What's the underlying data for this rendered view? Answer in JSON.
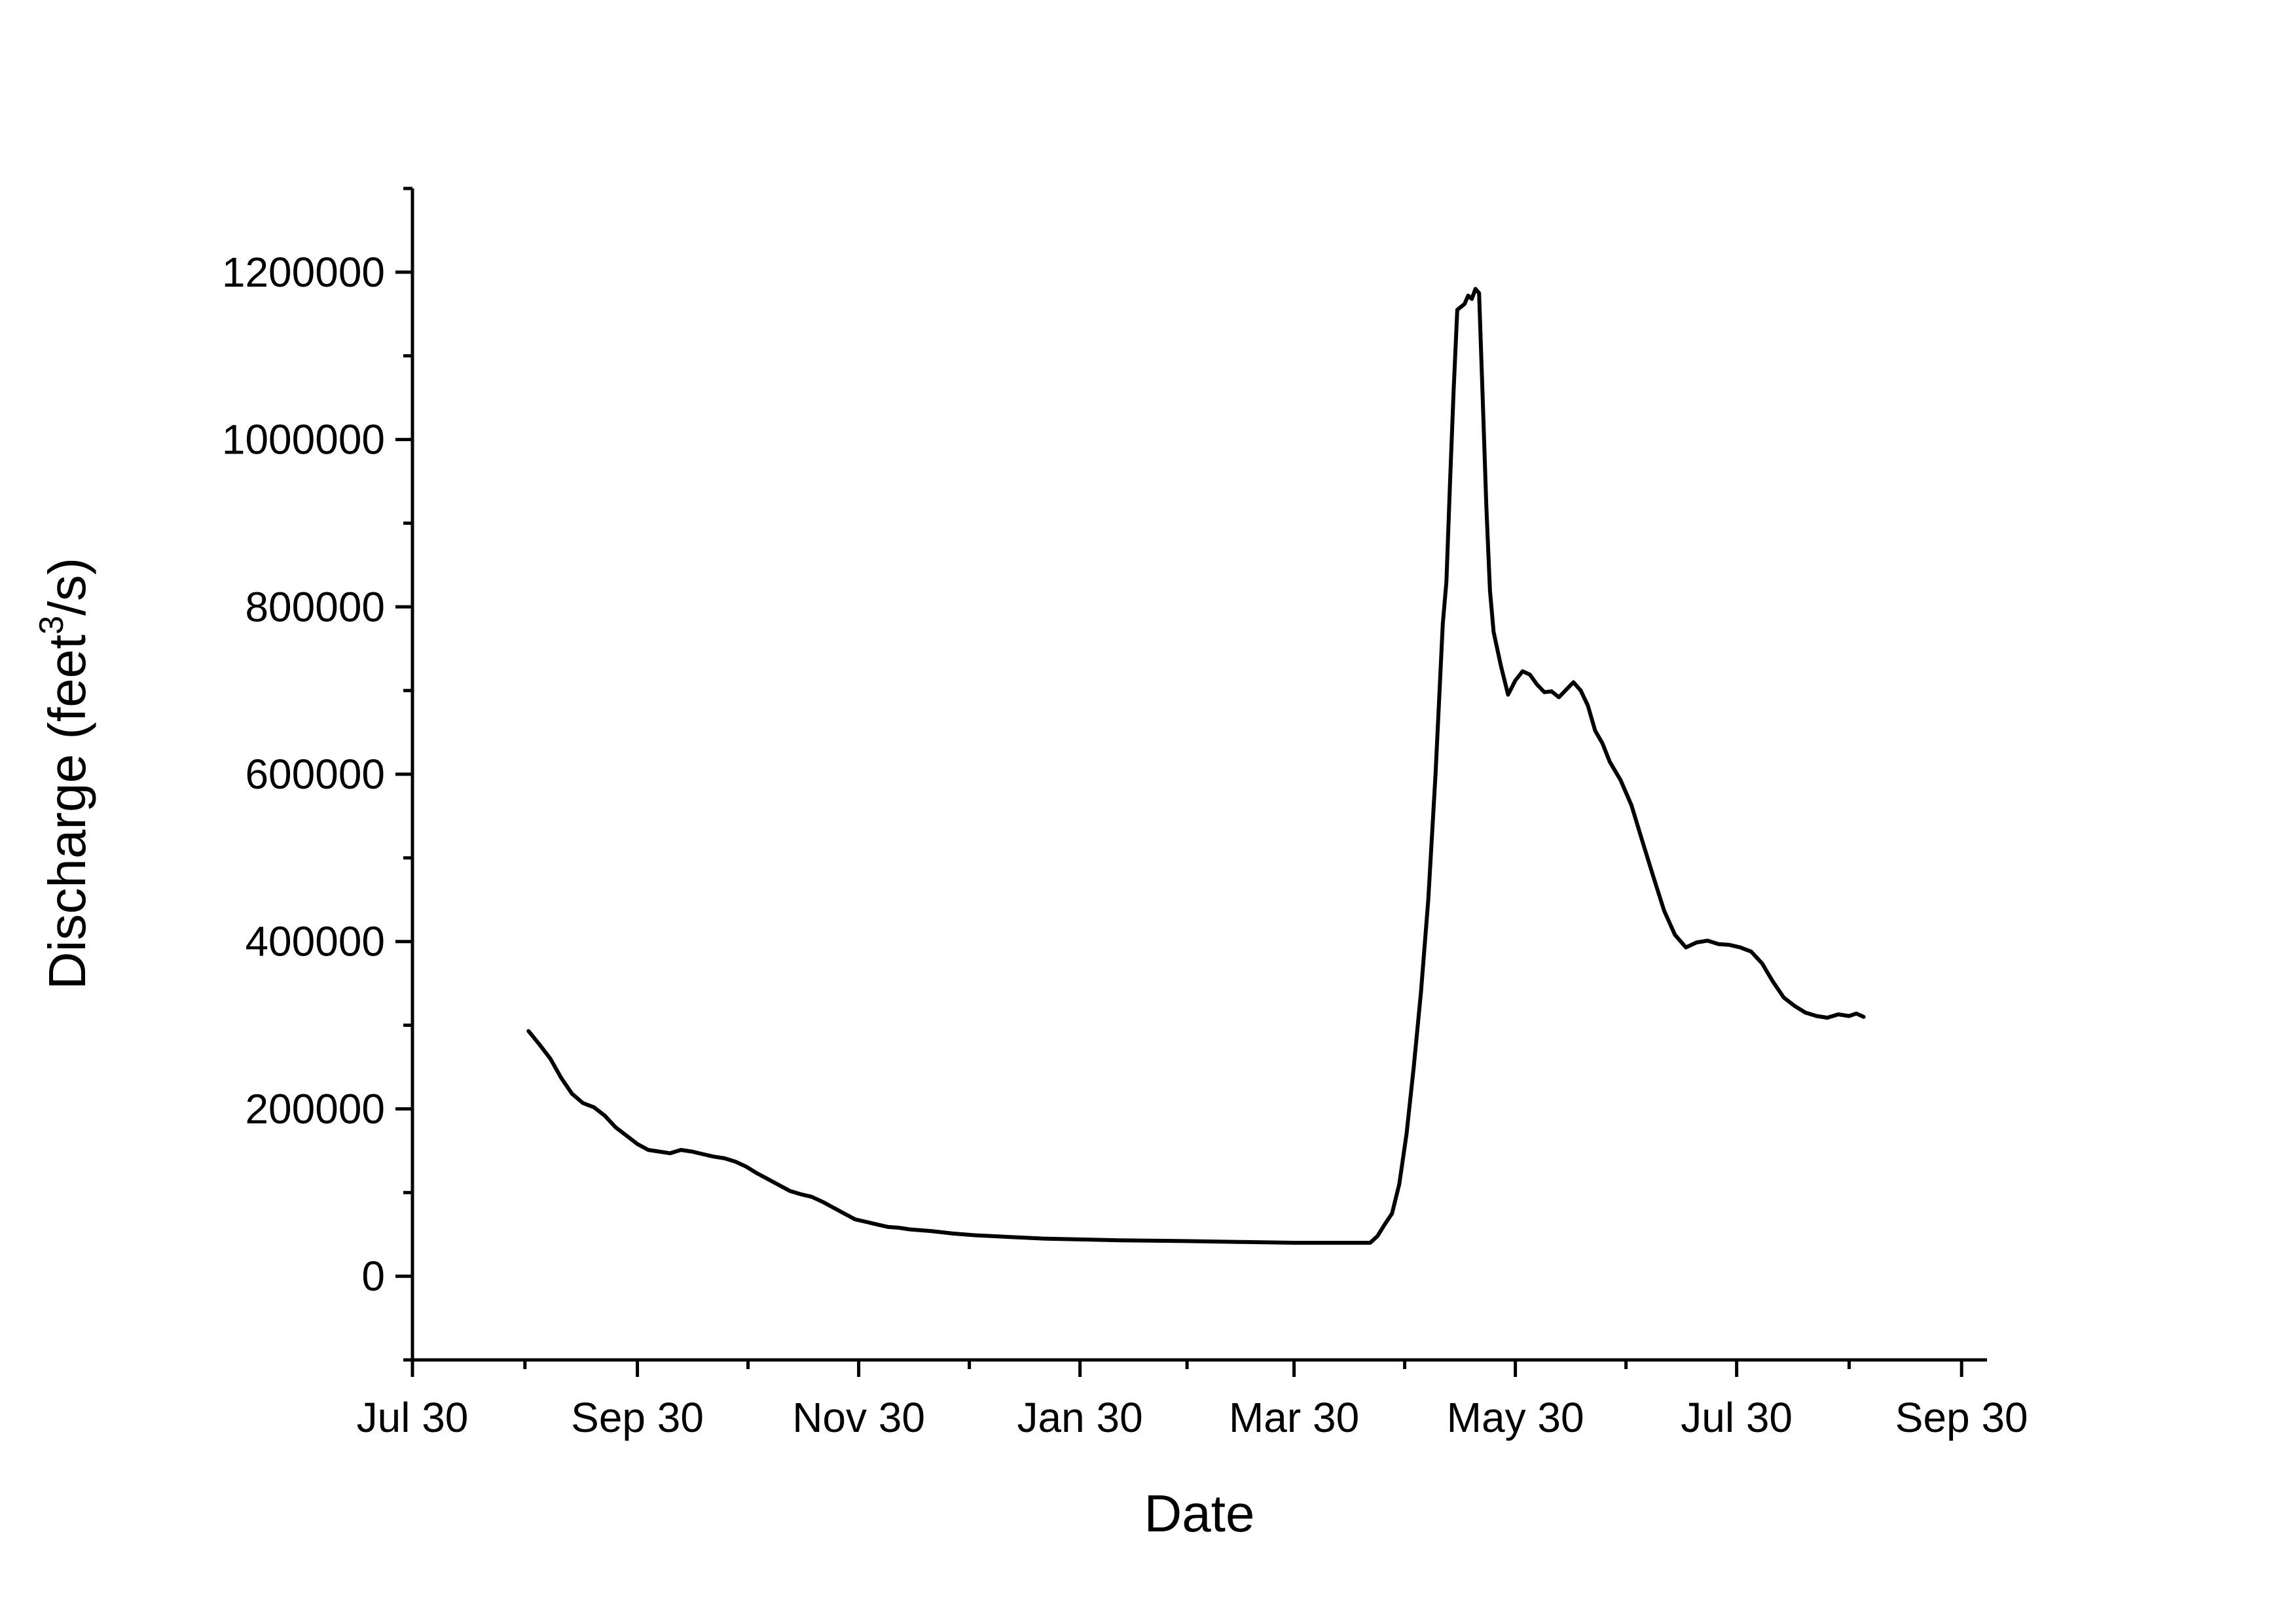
{
  "chart_data": {
    "type": "line",
    "title": "",
    "xlabel": "Date",
    "ylabel_main": "Discharge (feet",
    "ylabel_sup": "3",
    "ylabel_tail": "/s)",
    "x_ticks": [
      {
        "date": "2010-07-30",
        "label": "Jul 30"
      },
      {
        "date": "2010-09-30",
        "label": "Sep 30"
      },
      {
        "date": "2010-11-30",
        "label": "Nov 30"
      },
      {
        "date": "2011-01-30",
        "label": "Jan 30"
      },
      {
        "date": "2011-03-30",
        "label": "Mar 30"
      },
      {
        "date": "2011-05-30",
        "label": "May 30"
      },
      {
        "date": "2011-07-30",
        "label": "Jul 30"
      },
      {
        "date": "2011-09-30",
        "label": "Sep 30"
      }
    ],
    "xlim": [
      "2010-07-30",
      "2011-10-07"
    ],
    "ylim": [
      -100000,
      1300000
    ],
    "y_ticks": [
      {
        "value": 0,
        "label": "0"
      },
      {
        "value": 200000,
        "label": "200000"
      },
      {
        "value": 400000,
        "label": "400000"
      },
      {
        "value": 600000,
        "label": "600000"
      },
      {
        "value": 800000,
        "label": "800000"
      },
      {
        "value": 1000000,
        "label": "1000000"
      },
      {
        "value": 1200000,
        "label": "1200000"
      }
    ],
    "grid": false,
    "legend": "none",
    "series": [
      {
        "color": "#000000",
        "points": [
          [
            "2010-08-31",
            293000
          ],
          [
            "2010-09-03",
            277000
          ],
          [
            "2010-09-06",
            260000
          ],
          [
            "2010-09-09",
            237000
          ],
          [
            "2010-09-12",
            218000
          ],
          [
            "2010-09-15",
            207000
          ],
          [
            "2010-09-18",
            202000
          ],
          [
            "2010-09-21",
            192000
          ],
          [
            "2010-09-24",
            178000
          ],
          [
            "2010-09-27",
            168000
          ],
          [
            "2010-09-30",
            158000
          ],
          [
            "2010-10-03",
            151000
          ],
          [
            "2010-10-06",
            149000
          ],
          [
            "2010-10-09",
            147000
          ],
          [
            "2010-10-12",
            151000
          ],
          [
            "2010-10-15",
            149000
          ],
          [
            "2010-10-18",
            146000
          ],
          [
            "2010-10-21",
            143000
          ],
          [
            "2010-10-24",
            141000
          ],
          [
            "2010-10-27",
            137000
          ],
          [
            "2010-10-30",
            131000
          ],
          [
            "2010-11-02",
            123000
          ],
          [
            "2010-11-05",
            116000
          ],
          [
            "2010-11-08",
            109000
          ],
          [
            "2010-11-11",
            102000
          ],
          [
            "2010-11-14",
            98000
          ],
          [
            "2010-11-17",
            95000
          ],
          [
            "2010-11-20",
            89000
          ],
          [
            "2010-11-23",
            82000
          ],
          [
            "2010-11-26",
            75000
          ],
          [
            "2010-11-29",
            68000
          ],
          [
            "2010-12-02",
            65000
          ],
          [
            "2010-12-05",
            62000
          ],
          [
            "2010-12-08",
            59000
          ],
          [
            "2010-12-11",
            58000
          ],
          [
            "2010-12-14",
            56000
          ],
          [
            "2010-12-20",
            54000
          ],
          [
            "2010-12-26",
            51000
          ],
          [
            "2011-01-01",
            49000
          ],
          [
            "2011-01-10",
            47000
          ],
          [
            "2011-01-20",
            45000
          ],
          [
            "2011-01-30",
            44000
          ],
          [
            "2011-02-10",
            43000
          ],
          [
            "2011-02-28",
            42000
          ],
          [
            "2011-03-15",
            41000
          ],
          [
            "2011-03-30",
            40000
          ],
          [
            "2011-04-10",
            40000
          ],
          [
            "2011-04-20",
            40000
          ],
          [
            "2011-04-22",
            48000
          ],
          [
            "2011-04-24",
            62000
          ],
          [
            "2011-04-26",
            75000
          ],
          [
            "2011-04-28",
            110000
          ],
          [
            "2011-04-30",
            170000
          ],
          [
            "2011-05-02",
            250000
          ],
          [
            "2011-05-04",
            340000
          ],
          [
            "2011-05-06",
            450000
          ],
          [
            "2011-05-08",
            600000
          ],
          [
            "2011-05-10",
            780000
          ],
          [
            "2011-05-11",
            830000
          ],
          [
            "2011-05-12",
            950000
          ],
          [
            "2011-05-13",
            1060000
          ],
          [
            "2011-05-14",
            1155000
          ],
          [
            "2011-05-16",
            1162000
          ],
          [
            "2011-05-17",
            1172000
          ],
          [
            "2011-05-18",
            1168000
          ],
          [
            "2011-05-19",
            1180000
          ],
          [
            "2011-05-20",
            1175000
          ],
          [
            "2011-05-21",
            1050000
          ],
          [
            "2011-05-22",
            920000
          ],
          [
            "2011-05-23",
            820000
          ],
          [
            "2011-05-24",
            770000
          ],
          [
            "2011-05-26",
            730000
          ],
          [
            "2011-05-28",
            695000
          ],
          [
            "2011-05-30",
            712000
          ],
          [
            "2011-06-01",
            723000
          ],
          [
            "2011-06-03",
            719000
          ],
          [
            "2011-06-05",
            707000
          ],
          [
            "2011-06-07",
            698000
          ],
          [
            "2011-06-09",
            699000
          ],
          [
            "2011-06-11",
            692000
          ],
          [
            "2011-06-13",
            701000
          ],
          [
            "2011-06-15",
            710000
          ],
          [
            "2011-06-17",
            700000
          ],
          [
            "2011-06-19",
            682000
          ],
          [
            "2011-06-21",
            652000
          ],
          [
            "2011-06-23",
            637000
          ],
          [
            "2011-06-25",
            615000
          ],
          [
            "2011-06-28",
            593000
          ],
          [
            "2011-07-01",
            563000
          ],
          [
            "2011-07-04",
            520000
          ],
          [
            "2011-07-07",
            478000
          ],
          [
            "2011-07-10",
            437000
          ],
          [
            "2011-07-13",
            408000
          ],
          [
            "2011-07-16",
            393000
          ],
          [
            "2011-07-19",
            399000
          ],
          [
            "2011-07-22",
            401000
          ],
          [
            "2011-07-25",
            397000
          ],
          [
            "2011-07-28",
            396000
          ],
          [
            "2011-07-31",
            393000
          ],
          [
            "2011-08-03",
            388000
          ],
          [
            "2011-08-06",
            374000
          ],
          [
            "2011-08-09",
            352000
          ],
          [
            "2011-08-12",
            333000
          ],
          [
            "2011-08-15",
            323000
          ],
          [
            "2011-08-18",
            315000
          ],
          [
            "2011-08-21",
            311000
          ],
          [
            "2011-08-24",
            309000
          ],
          [
            "2011-08-27",
            313000
          ],
          [
            "2011-08-30",
            311000
          ],
          [
            "2011-09-01",
            314000
          ],
          [
            "2011-09-03",
            310000
          ]
        ]
      }
    ]
  }
}
